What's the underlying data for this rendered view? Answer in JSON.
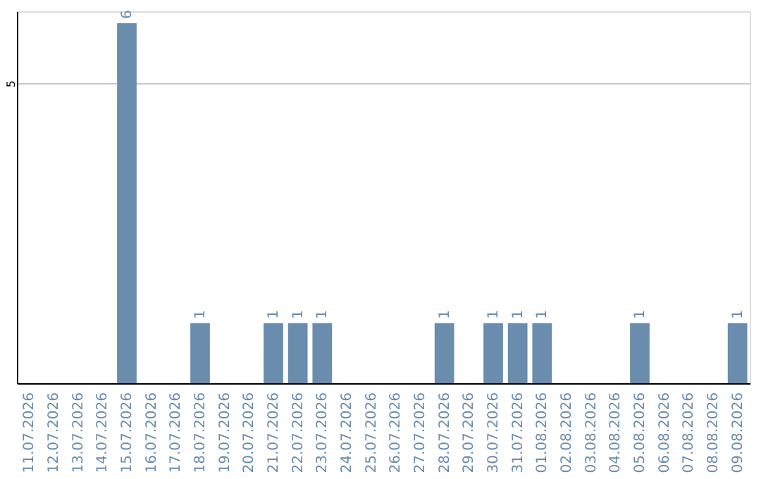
{
  "chart_data": {
    "type": "bar",
    "categories": [
      "11.07.2026",
      "12.07.2026",
      "13.07.2026",
      "14.07.2026",
      "15.07.2026",
      "16.07.2026",
      "17.07.2026",
      "18.07.2026",
      "19.07.2026",
      "20.07.2026",
      "21.07.2026",
      "22.07.2026",
      "23.07.2026",
      "24.07.2026",
      "25.07.2026",
      "26.07.2026",
      "27.07.2026",
      "28.07.2026",
      "29.07.2026",
      "30.07.2026",
      "31.07.2026",
      "01.08.2026",
      "02.08.2026",
      "03.08.2026",
      "04.08.2026",
      "05.08.2026",
      "06.08.2026",
      "07.08.2026",
      "08.08.2026",
      "09.08.2026"
    ],
    "values": [
      0,
      0,
      0,
      0,
      6,
      0,
      0,
      1,
      0,
      0,
      1,
      1,
      1,
      0,
      0,
      0,
      0,
      1,
      0,
      1,
      1,
      1,
      0,
      0,
      0,
      1,
      0,
      0,
      0,
      1
    ],
    "value_labels": [
      null,
      null,
      null,
      null,
      "6",
      null,
      null,
      "1",
      null,
      null,
      "1",
      "1",
      "1",
      null,
      null,
      null,
      null,
      "1",
      null,
      "1",
      "1",
      "1",
      null,
      null,
      null,
      "1",
      null,
      null,
      null,
      "1"
    ],
    "color": "#6a8cad",
    "ylim": [
      0,
      6.2
    ],
    "yticks": [
      5
    ],
    "grid": "y"
  }
}
